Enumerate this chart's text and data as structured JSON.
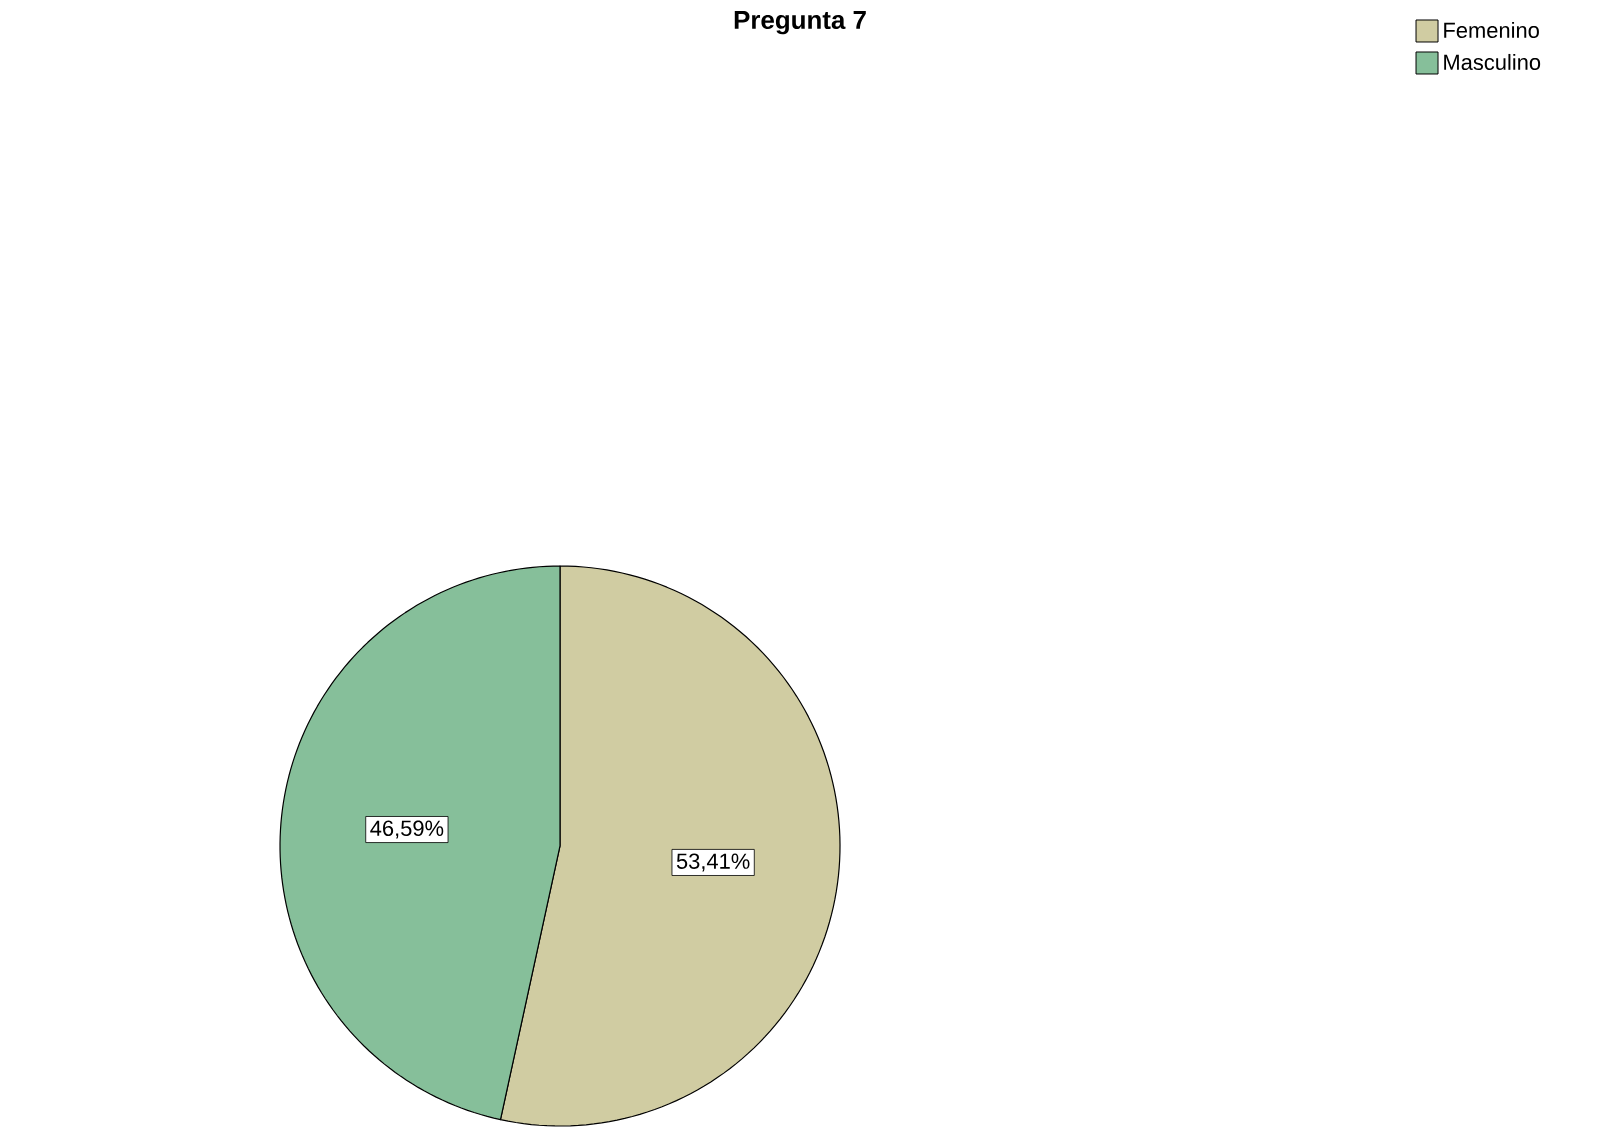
{
  "chart_data": {
    "type": "pie",
    "title": "Pregunta 7",
    "categories": [
      "Femenino",
      "Masculino"
    ],
    "values": [
      53.41,
      46.59
    ],
    "colors": [
      "#d0cca2",
      "#86bf9a"
    ],
    "value_labels": [
      "53,41%",
      "46,59%"
    ],
    "legend": "top right"
  }
}
